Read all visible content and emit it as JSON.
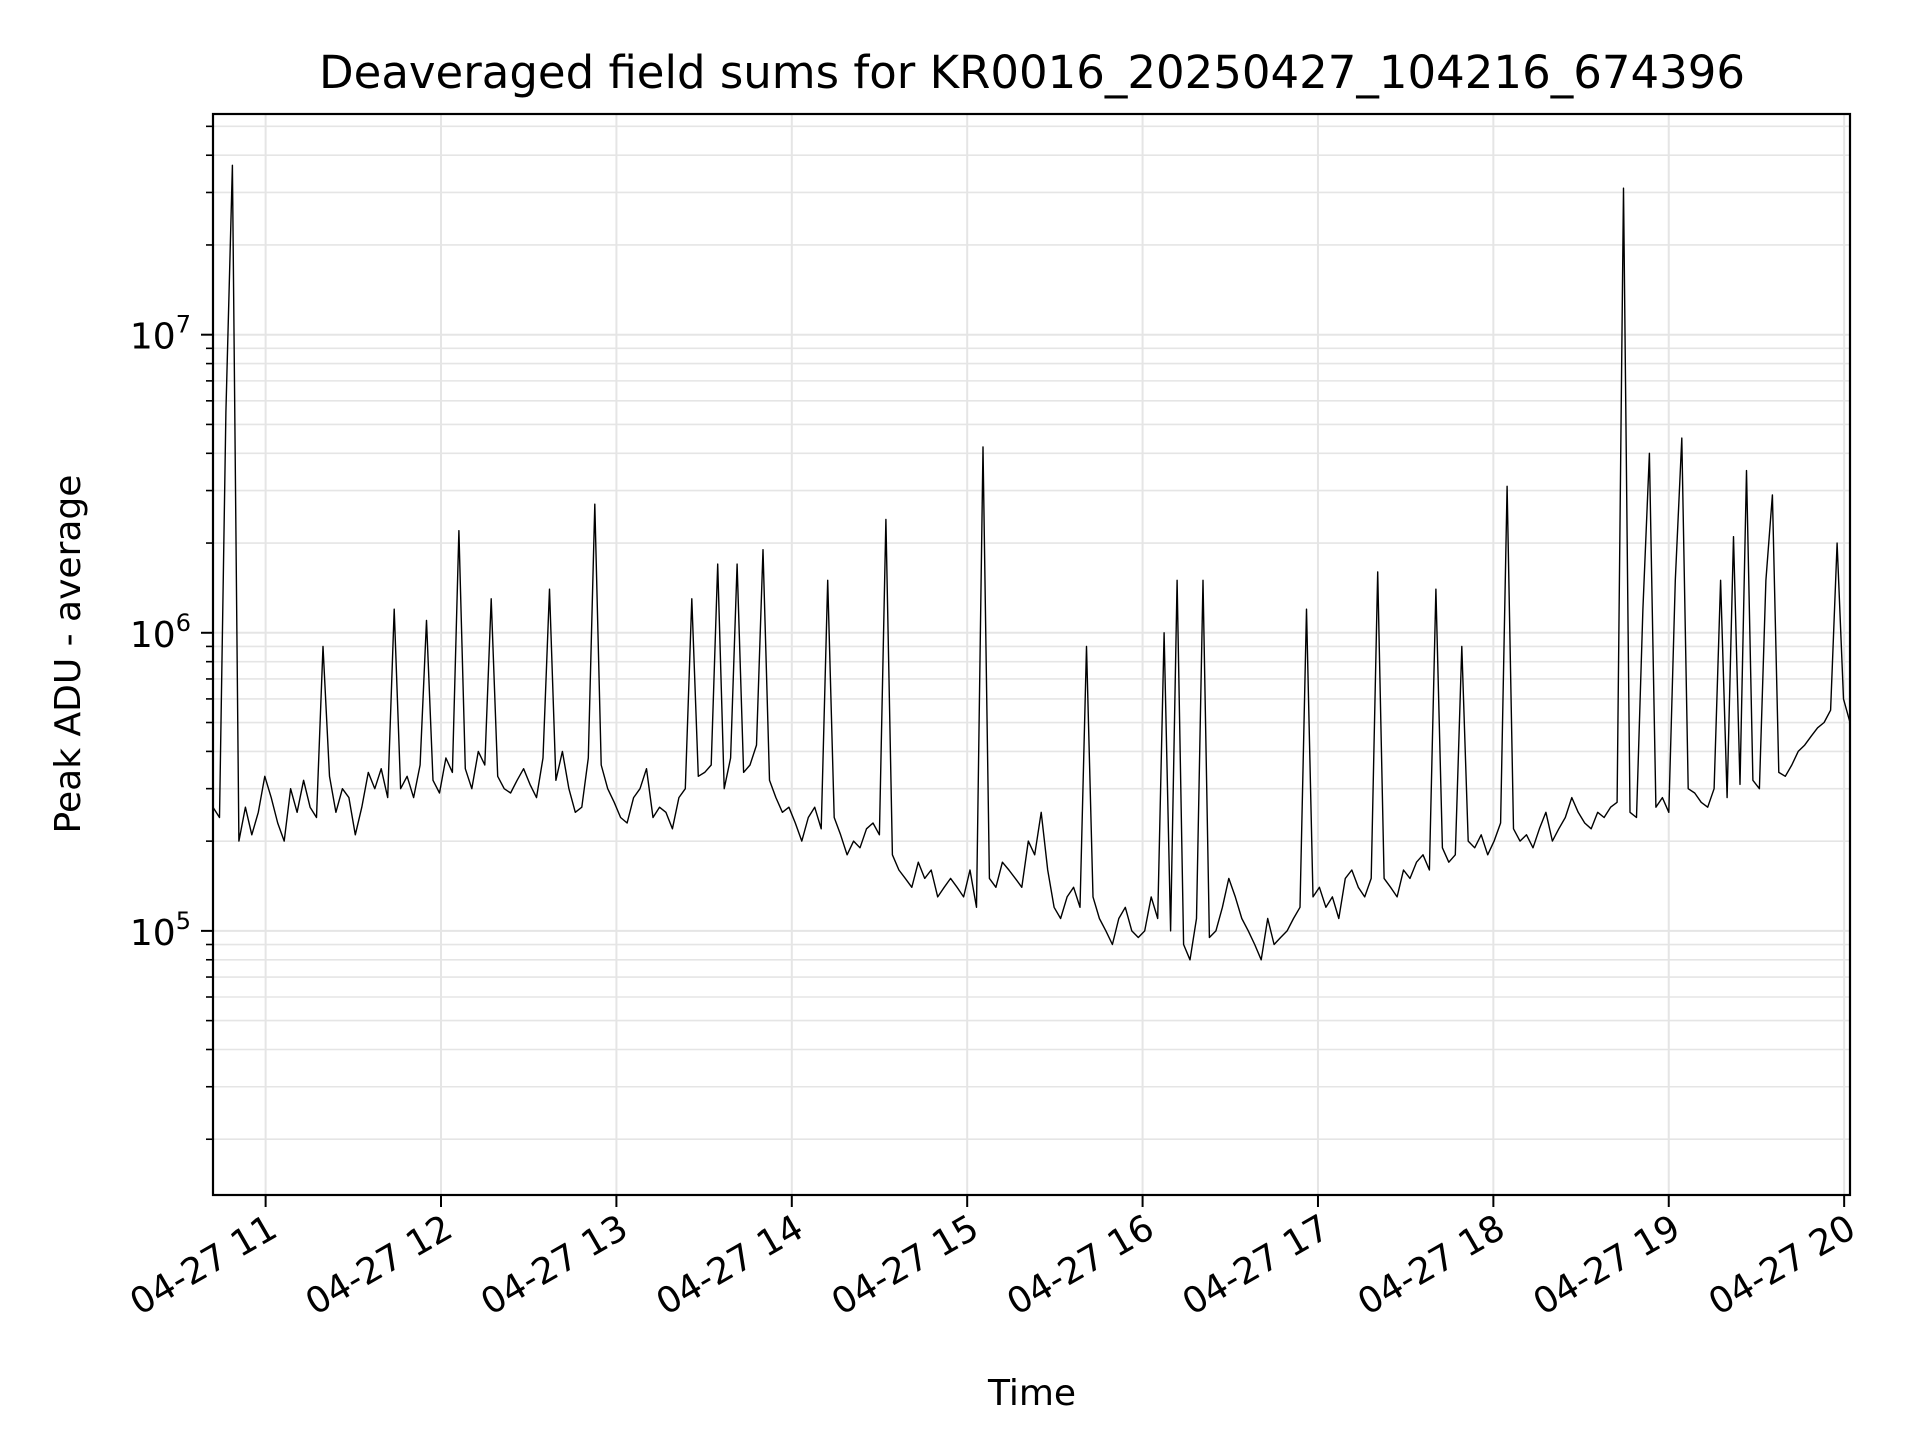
{
  "chart_data": {
    "type": "line",
    "title": "Deaveraged field sums for KR0016_20250427_104216_674396",
    "xlabel": "Time",
    "ylabel": "Peak ADU - average",
    "yscale": "log",
    "grid": true,
    "legend": "none",
    "line_color": "#000000",
    "grid_color": "#e5e5e5",
    "xlim": [
      "2025-04-27T10:42:00",
      "2025-04-27T20:02:00"
    ],
    "ylim": [
      13000,
      55000000
    ],
    "x_ticks": [
      {
        "value": "2025-04-27T11:00:00",
        "label": "04-27 11"
      },
      {
        "value": "2025-04-27T12:00:00",
        "label": "04-27 12"
      },
      {
        "value": "2025-04-27T13:00:00",
        "label": "04-27 13"
      },
      {
        "value": "2025-04-27T14:00:00",
        "label": "04-27 14"
      },
      {
        "value": "2025-04-27T15:00:00",
        "label": "04-27 15"
      },
      {
        "value": "2025-04-27T16:00:00",
        "label": "04-27 16"
      },
      {
        "value": "2025-04-27T17:00:00",
        "label": "04-27 17"
      },
      {
        "value": "2025-04-27T18:00:00",
        "label": "04-27 18"
      },
      {
        "value": "2025-04-27T19:00:00",
        "label": "04-27 19"
      },
      {
        "value": "2025-04-27T20:00:00",
        "label": "04-27 20"
      }
    ],
    "y_ticks": [
      {
        "value": 100000,
        "base": "10",
        "exp": "5"
      },
      {
        "value": 1000000,
        "base": "10",
        "exp": "6"
      },
      {
        "value": 10000000,
        "base": "10",
        "exp": "7"
      }
    ],
    "series": [
      {
        "x_start": "2025-04-27T10:42:00",
        "x_end": "2025-04-27T20:02:00",
        "y": [
          260000,
          240000,
          5500000,
          37000000,
          200000,
          260000,
          210000,
          250000,
          330000,
          280000,
          230000,
          200000,
          300000,
          250000,
          320000,
          260000,
          240000,
          900000,
          330000,
          250000,
          300000,
          280000,
          210000,
          260000,
          340000,
          300000,
          350000,
          280000,
          1200000,
          300000,
          330000,
          280000,
          360000,
          1100000,
          320000,
          290000,
          380000,
          340000,
          2200000,
          350000,
          300000,
          400000,
          360000,
          1300000,
          330000,
          300000,
          290000,
          320000,
          350000,
          310000,
          280000,
          380000,
          1400000,
          320000,
          400000,
          300000,
          250000,
          260000,
          380000,
          2700000,
          360000,
          300000,
          270000,
          240000,
          230000,
          280000,
          300000,
          350000,
          240000,
          260000,
          250000,
          220000,
          280000,
          300000,
          1300000,
          330000,
          340000,
          360000,
          1700000,
          300000,
          380000,
          1700000,
          340000,
          360000,
          420000,
          1900000,
          320000,
          280000,
          250000,
          260000,
          230000,
          200000,
          240000,
          260000,
          220000,
          1500000,
          240000,
          210000,
          180000,
          200000,
          190000,
          220000,
          230000,
          210000,
          2400000,
          180000,
          160000,
          150000,
          140000,
          170000,
          150000,
          160000,
          130000,
          140000,
          150000,
          140000,
          130000,
          160000,
          120000,
          4200000,
          150000,
          140000,
          170000,
          160000,
          150000,
          140000,
          200000,
          180000,
          250000,
          160000,
          120000,
          110000,
          130000,
          140000,
          120000,
          900000,
          130000,
          110000,
          100000,
          90000,
          110000,
          120000,
          100000,
          95000,
          100000,
          130000,
          110000,
          1000000,
          100000,
          1500000,
          90000,
          80000,
          110000,
          1500000,
          95000,
          100000,
          120000,
          150000,
          130000,
          110000,
          100000,
          90000,
          80000,
          110000,
          90000,
          95000,
          100000,
          110000,
          120000,
          1200000,
          130000,
          140000,
          120000,
          130000,
          110000,
          150000,
          160000,
          140000,
          130000,
          150000,
          1600000,
          150000,
          140000,
          130000,
          160000,
          150000,
          170000,
          180000,
          160000,
          1400000,
          190000,
          170000,
          180000,
          900000,
          200000,
          190000,
          210000,
          180000,
          200000,
          230000,
          3100000,
          220000,
          200000,
          210000,
          190000,
          220000,
          250000,
          200000,
          220000,
          240000,
          280000,
          250000,
          230000,
          220000,
          250000,
          240000,
          260000,
          270000,
          31000000,
          250000,
          240000,
          1200000,
          4000000,
          260000,
          280000,
          250000,
          1500000,
          4500000,
          300000,
          290000,
          270000,
          260000,
          300000,
          1500000,
          280000,
          2100000,
          310000,
          3500000,
          320000,
          300000,
          1500000,
          2900000,
          340000,
          330000,
          360000,
          400000,
          420000,
          450000,
          480000,
          500000,
          550000,
          2000000,
          600000,
          500000
        ]
      }
    ]
  }
}
